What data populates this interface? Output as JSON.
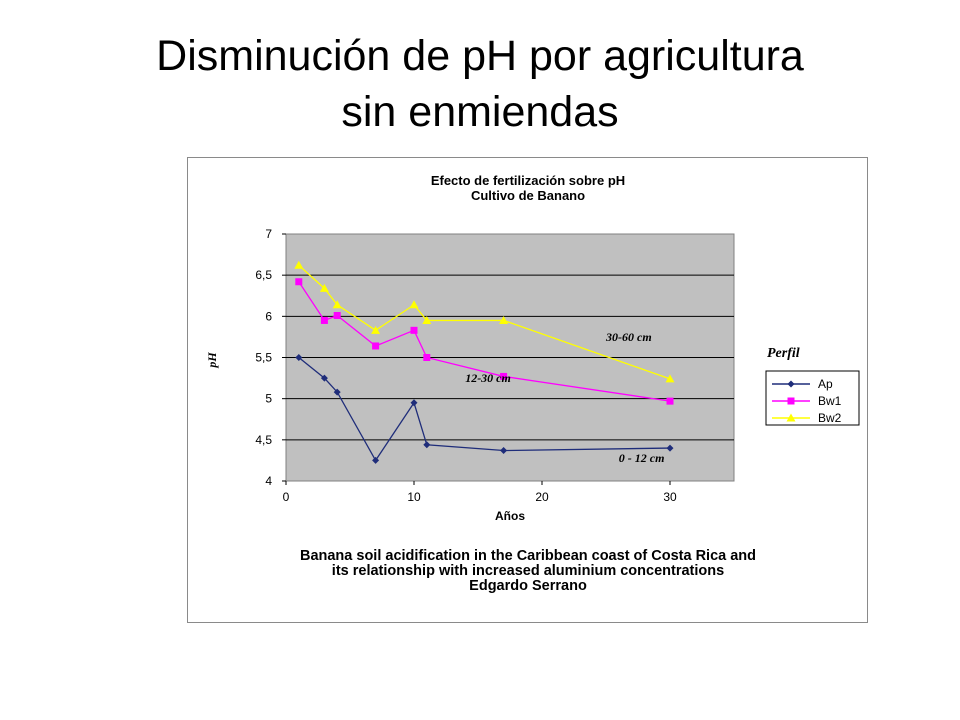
{
  "slide": {
    "title_line1": "Disminución de pH por agricultura",
    "title_line2": "sin enmiendas"
  },
  "colors": {
    "plot_bg": "#c0c0c0",
    "grid": "#000000",
    "Ap": "#1f2d7a",
    "Bw1": "#ff00ff",
    "Bw2": "#ffff00"
  },
  "chart_data": {
    "type": "line",
    "title": "Efecto de fertilización sobre pH",
    "subtitle": "Cultivo de Banano",
    "xlabel": "Años",
    "ylabel": "pH",
    "xlim": [
      0,
      35
    ],
    "ylim": [
      4,
      7
    ],
    "x_ticks": [
      "0",
      "10",
      "20",
      "30"
    ],
    "y_ticks": [
      "4",
      "4,5",
      "5",
      "5,5",
      "6",
      "6,5",
      "7"
    ],
    "grid": true,
    "legend_title": "Perfil",
    "legend_position": "right",
    "series": [
      {
        "name": "Ap",
        "marker": "diamond",
        "points": [
          [
            1,
            5.5
          ],
          [
            3,
            5.25
          ],
          [
            4,
            5.08
          ],
          [
            7,
            4.25
          ],
          [
            10,
            4.95
          ],
          [
            11,
            4.44
          ],
          [
            17,
            4.37
          ],
          [
            30,
            4.4
          ]
        ]
      },
      {
        "name": "Bw1",
        "marker": "square",
        "points": [
          [
            1,
            6.42
          ],
          [
            3,
            5.95
          ],
          [
            4,
            6.01
          ],
          [
            7,
            5.64
          ],
          [
            10,
            5.83
          ],
          [
            11,
            5.5
          ],
          [
            17,
            5.27
          ],
          [
            30,
            4.97
          ]
        ]
      },
      {
        "name": "Bw2",
        "marker": "triangle",
        "points": [
          [
            1,
            6.62
          ],
          [
            3,
            6.34
          ],
          [
            4,
            6.14
          ],
          [
            7,
            5.83
          ],
          [
            10,
            6.14
          ],
          [
            11,
            5.95
          ],
          [
            17,
            5.95
          ],
          [
            30,
            5.24
          ]
        ]
      }
    ],
    "annotations": [
      {
        "text": "30-60 cm",
        "x": 25,
        "y": 5.7
      },
      {
        "text": "12-30 cm",
        "x": 14,
        "y": 5.2
      },
      {
        "text": "0 - 12 cm",
        "x": 26,
        "y": 4.23
      }
    ],
    "footer_lines": [
      "Banana soil acidification in the Caribbean coast of Costa Rica and",
      "its relationship with increased aluminium concentrations",
      "Edgardo Serrano"
    ]
  }
}
